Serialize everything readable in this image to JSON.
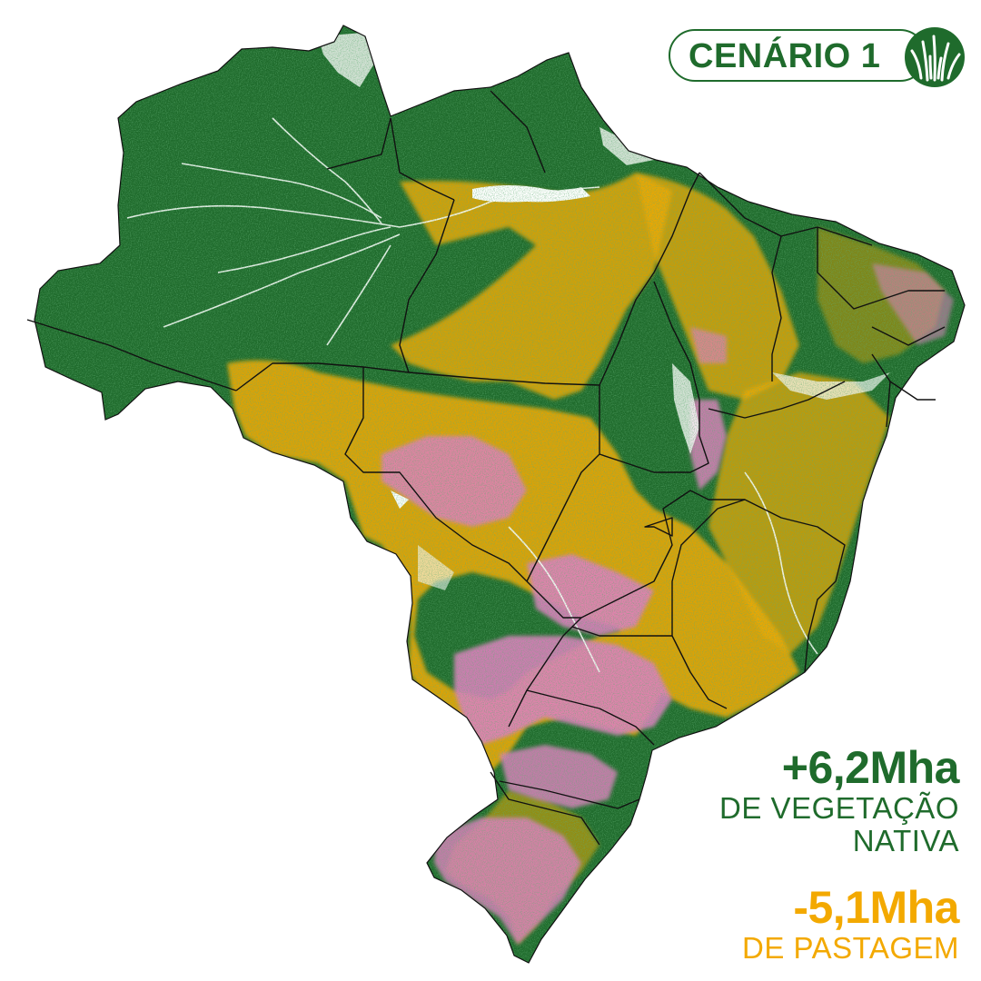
{
  "colors": {
    "native_vegetation": "#1f6b2c",
    "pasture": "#f3a900",
    "agriculture": "#e07fc0",
    "other": "#ffffff",
    "borders": "#111111"
  },
  "badge": {
    "label": "CENÁRIO 1",
    "icon": "grass-sprout-icon"
  },
  "stats": {
    "vegetation": {
      "value": "+6,2Mha",
      "line1": "DE VEGETAÇÃO",
      "line2": "NATIVA"
    },
    "pasture": {
      "value": "-5,1Mha",
      "line1": "DE PASTAGEM"
    }
  }
}
